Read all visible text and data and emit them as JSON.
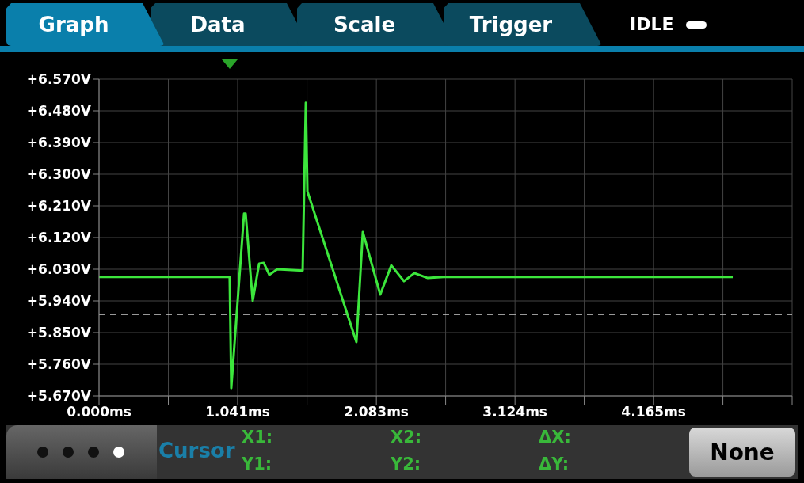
{
  "chart_data": {
    "type": "line",
    "color": "#3ce63c",
    "x": [
      0,
      0.981,
      0.993,
      1.089,
      1.101,
      1.154,
      1.202,
      1.237,
      1.279,
      1.338,
      1.529,
      1.553,
      1.565,
      1.933,
      1.981,
      2.112,
      2.195,
      2.29,
      2.368,
      2.469,
      2.588,
      4.759
    ],
    "values": [
      6.008,
      6.008,
      5.692,
      6.188,
      6.188,
      5.94,
      6.046,
      6.048,
      6.014,
      6.03,
      6.026,
      6.503,
      6.251,
      5.823,
      6.136,
      5.958,
      6.041,
      5.996,
      6.019,
      6.005,
      6.008,
      6.008
    ],
    "xlim": [
      0,
      5.205
    ],
    "xticks": [
      {
        "value": 0,
        "label": "0.000ms"
      },
      {
        "value": 0.5205,
        "label": null
      },
      {
        "value": 1.041,
        "label": "1.041ms"
      },
      {
        "value": 1.562,
        "label": null
      },
      {
        "value": 2.083,
        "label": "2.083ms"
      },
      {
        "value": 2.603,
        "label": null
      },
      {
        "value": 3.124,
        "label": "3.124ms"
      },
      {
        "value": 3.644,
        "label": null
      },
      {
        "value": 4.165,
        "label": "4.165ms"
      },
      {
        "value": 4.685,
        "label": null
      },
      {
        "value": 5.205,
        "label": null
      }
    ],
    "ylim": [
      5.67,
      6.57
    ],
    "yticks": [
      {
        "value": 5.67,
        "label": "+5.670V"
      },
      {
        "value": 5.76,
        "label": "+5.760V"
      },
      {
        "value": 5.85,
        "label": "+5.850V"
      },
      {
        "value": 5.94,
        "label": "+5.940V"
      },
      {
        "value": 6.03,
        "label": "+6.030V"
      },
      {
        "value": 6.12,
        "label": "+6.120V"
      },
      {
        "value": 6.21,
        "label": "+6.210V"
      },
      {
        "value": 6.3,
        "label": "+6.300V"
      },
      {
        "value": 6.39,
        "label": "+6.390V"
      },
      {
        "value": 6.48,
        "label": "+6.480V"
      },
      {
        "value": 6.57,
        "label": "+6.570V"
      }
    ],
    "ref_lines": [
      {
        "axis": "y",
        "value": 5.902,
        "color": "#cccccc",
        "line_style": "dashed"
      }
    ],
    "grid": true,
    "legend": false,
    "marker": "none",
    "line_style": "solid",
    "annotations": [
      "Graph",
      "Data",
      "Scale",
      "Trigger",
      "IDLE",
      "Cursor",
      "X1:",
      "Y1:",
      "X2:",
      "Y2:",
      "ΔX:",
      "ΔY:",
      "None"
    ]
  }
}
